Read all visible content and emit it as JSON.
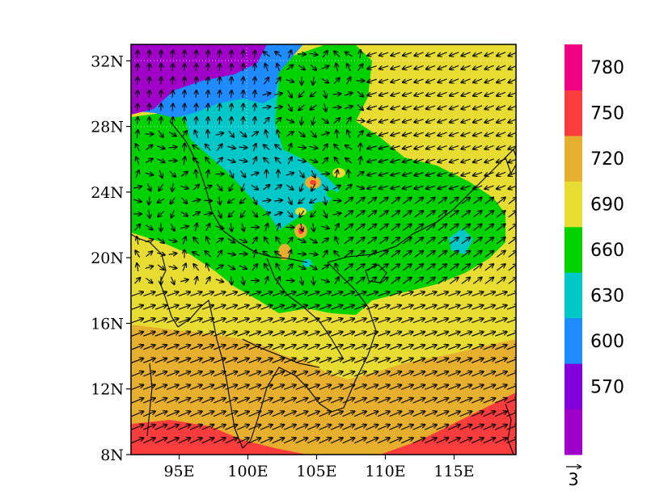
{
  "map": {
    "longitude_ticks": [
      {
        "lon": 95,
        "label": "95E"
      },
      {
        "lon": 100,
        "label": "100E"
      },
      {
        "lon": 105,
        "label": "105E"
      },
      {
        "lon": 110,
        "label": "110E"
      },
      {
        "lon": 115,
        "label": "115E"
      }
    ],
    "latitude_ticks": [
      {
        "lat": 8,
        "label": "8N"
      },
      {
        "lat": 12,
        "label": "12N"
      },
      {
        "lat": 16,
        "label": "16N"
      },
      {
        "lat": 20,
        "label": "20N"
      },
      {
        "lat": 24,
        "label": "24N"
      },
      {
        "lat": 28,
        "label": "28N"
      },
      {
        "lat": 32,
        "label": "32N"
      }
    ],
    "lon_range": [
      91.5,
      119.5
    ],
    "lat_range": [
      8,
      33
    ],
    "field": "filled contours with wind vectors",
    "reference_vector": {
      "magnitude": 3,
      "label": "3"
    }
  },
  "colorbar": {
    "levels": [
      {
        "color": "#a000c8"
      },
      {
        "color": "#8200dc",
        "label": "570"
      },
      {
        "color": "#1e8cff",
        "label": "600"
      },
      {
        "color": "#00c8c8",
        "label": "630"
      },
      {
        "color": "#00d200",
        "label": "660"
      },
      {
        "color": "#e6dc32",
        "label": "690"
      },
      {
        "color": "#e6af2d",
        "label": "720"
      },
      {
        "color": "#fa3c3c",
        "label": "750"
      },
      {
        "color": "#f00082",
        "label": "780"
      }
    ]
  },
  "colors": {
    "purple": "#a000c8",
    "blue": "#1e8cff",
    "cyan": "#00c8c8",
    "green": "#00d200",
    "yellow": "#e6dc32",
    "orange": "#e6af2d",
    "red": "#fa3c3c",
    "magenta": "#f00082"
  }
}
